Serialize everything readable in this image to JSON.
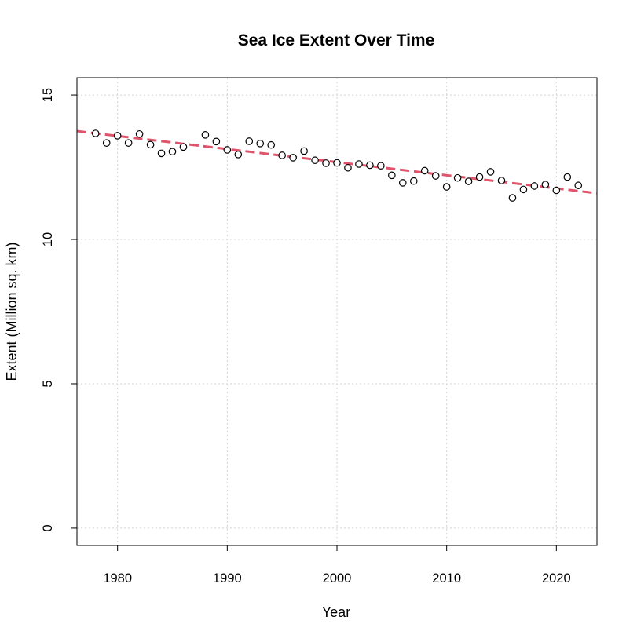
{
  "chart_data": {
    "type": "scatter",
    "title": "Sea Ice Extent Over Time",
    "xlabel": "Year",
    "ylabel": "Extent (Million sq. km)",
    "xlim": [
      1976.3,
      2023.7
    ],
    "ylim": [
      -0.6,
      15.6
    ],
    "x_ticks": [
      1980,
      1990,
      2000,
      2010,
      2020
    ],
    "y_ticks": [
      0,
      5,
      10,
      15
    ],
    "grid": true,
    "points": {
      "x": [
        1978,
        1979,
        1980,
        1981,
        1982,
        1983,
        1984,
        1985,
        1986,
        1988,
        1989,
        1990,
        1991,
        1992,
        1993,
        1994,
        1995,
        1996,
        1997,
        1998,
        1999,
        2000,
        2001,
        2002,
        2003,
        2004,
        2005,
        2006,
        2007,
        2008,
        2009,
        2010,
        2011,
        2012,
        2013,
        2014,
        2015,
        2016,
        2017,
        2018,
        2019,
        2020,
        2021,
        2022
      ],
      "y": [
        13.67,
        13.34,
        13.59,
        13.34,
        13.65,
        13.28,
        12.98,
        13.04,
        13.2,
        13.62,
        13.39,
        13.1,
        12.94,
        13.4,
        13.32,
        13.27,
        12.91,
        12.83,
        13.06,
        12.74,
        12.64,
        12.65,
        12.48,
        12.61,
        12.57,
        12.55,
        12.22,
        11.96,
        12.02,
        12.38,
        12.2,
        11.82,
        12.13,
        12.01,
        12.16,
        12.34,
        12.04,
        11.44,
        11.73,
        11.85,
        11.9,
        11.7,
        12.16,
        11.87
      ]
    },
    "trend_line": {
      "x": [
        1976.3,
        2023.7
      ],
      "y": [
        13.75,
        11.6
      ],
      "color": "#DF536B",
      "style": "dashed"
    },
    "point_style": "open-circle",
    "point_color": "#000000",
    "grid_color": "#d3d3d3"
  }
}
